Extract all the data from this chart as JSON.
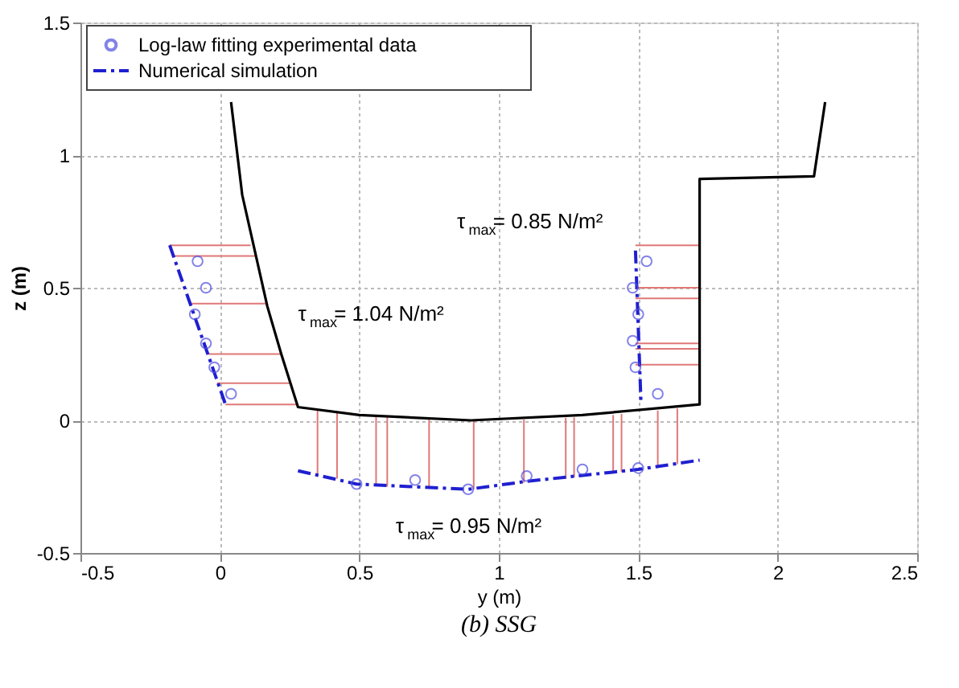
{
  "chart_data": {
    "type": "line",
    "title": "(b) SSG",
    "xlabel": "y (m)",
    "ylabel": "z (m)",
    "xlim": [
      -0.5,
      2.5
    ],
    "xticks": [
      -0.5,
      0,
      0.5,
      1,
      1.5,
      2,
      2.5
    ],
    "ylim": [
      -0.5,
      1.5
    ],
    "yticks": [
      -0.5,
      0,
      0.5,
      1,
      1.5
    ],
    "grid": true,
    "legend": "top left",
    "series": [
      {
        "color": "#e07878",
        "x": [
          -0.18,
          0.11
        ],
        "values": [
          0.66,
          0.66
        ]
      },
      {
        "color": "#e07878",
        "x": [
          -0.17,
          0.13
        ],
        "values": [
          0.62,
          0.62
        ]
      },
      {
        "color": "#e07878",
        "x": [
          -0.11,
          0.17
        ],
        "values": [
          0.44,
          0.44
        ]
      },
      {
        "color": "#e07878",
        "x": [
          -0.04,
          0.22
        ],
        "values": [
          0.25,
          0.25
        ]
      },
      {
        "color": "#e07878",
        "x": [
          -0.01,
          0.25
        ],
        "values": [
          0.14,
          0.14
        ]
      },
      {
        "color": "#e07878",
        "x": [
          0.02,
          0.28
        ],
        "values": [
          0.06,
          0.06
        ]
      },
      {
        "color": "#e07878",
        "x": [
          1.49,
          1.72
        ],
        "values": [
          0.66,
          0.66
        ]
      },
      {
        "color": "#e07878",
        "x": [
          1.49,
          1.72
        ],
        "values": [
          0.5,
          0.5
        ]
      },
      {
        "color": "#e07878",
        "x": [
          1.49,
          1.72
        ],
        "values": [
          0.46,
          0.46
        ]
      },
      {
        "color": "#e07878",
        "x": [
          1.49,
          1.72
        ],
        "values": [
          0.29,
          0.29
        ]
      },
      {
        "color": "#e07878",
        "x": [
          1.49,
          1.72
        ],
        "values": [
          0.27,
          0.27
        ]
      },
      {
        "color": "#e07878",
        "x": [
          1.49,
          1.72
        ],
        "values": [
          0.21,
          0.21
        ]
      },
      {
        "color": "#e07878",
        "x": [
          0.35,
          0.35
        ],
        "values": [
          0.04,
          -0.21
        ]
      },
      {
        "color": "#e07878",
        "x": [
          0.42,
          0.42
        ],
        "values": [
          0.03,
          -0.22
        ]
      },
      {
        "color": "#e07878",
        "x": [
          0.56,
          0.56
        ],
        "values": [
          0.015,
          -0.245
        ]
      },
      {
        "color": "#e07878",
        "x": [
          0.6,
          0.6
        ],
        "values": [
          0.012,
          -0.25
        ]
      },
      {
        "color": "#e07878",
        "x": [
          0.75,
          0.75
        ],
        "values": [
          0.003,
          -0.255
        ]
      },
      {
        "color": "#e07878",
        "x": [
          0.91,
          0.91
        ],
        "values": [
          0.0,
          -0.26
        ]
      },
      {
        "color": "#e07878",
        "x": [
          1.09,
          1.09
        ],
        "values": [
          0.003,
          -0.235
        ]
      },
      {
        "color": "#e07878",
        "x": [
          1.24,
          1.24
        ],
        "values": [
          0.01,
          -0.22
        ]
      },
      {
        "color": "#e07878",
        "x": [
          1.27,
          1.27
        ],
        "values": [
          0.011,
          -0.215
        ]
      },
      {
        "color": "#e07878",
        "x": [
          1.41,
          1.41
        ],
        "values": [
          0.02,
          -0.2
        ]
      },
      {
        "color": "#e07878",
        "x": [
          1.44,
          1.44
        ],
        "values": [
          0.024,
          -0.195
        ]
      },
      {
        "color": "#e07878",
        "x": [
          1.57,
          1.57
        ],
        "values": [
          0.037,
          -0.18
        ]
      },
      {
        "color": "#e07878",
        "x": [
          1.64,
          1.64
        ],
        "values": [
          0.045,
          -0.165
        ]
      },
      {
        "color": "#000000",
        "x": [
          0.04,
          0.08,
          0.17,
          0.22,
          0.28,
          0.5,
          0.9,
          1.3,
          1.72,
          1.72,
          2.13,
          2.17
        ],
        "values": [
          1.2,
          0.85,
          0.43,
          0.25,
          0.05,
          0.02,
          0.0,
          0.02,
          0.06,
          0.91,
          0.92,
          1.2
        ]
      },
      {
        "name": "Numerical simulation",
        "color": "#1f1fd0",
        "line_style": "dashed",
        "x": [
          -0.18,
          0.02,
          null,
          1.49,
          1.51,
          null,
          0.28,
          0.49,
          0.89,
          1.1,
          1.5,
          1.72
        ],
        "values": [
          0.66,
          0.06,
          null,
          0.64,
          0.06,
          null,
          -0.19,
          -0.24,
          -0.26,
          -0.23,
          -0.185,
          -0.15
        ]
      },
      {
        "type": "scatter",
        "name": "Log-law fitting experimental data",
        "color": "#5050e0",
        "marker": "circle",
        "x": [
          -0.08,
          -0.05,
          -0.09,
          -0.05,
          -0.02,
          0.04,
          1.53,
          1.48,
          1.5,
          1.48,
          1.49,
          1.57,
          0.49,
          0.7,
          0.89,
          1.1,
          1.3,
          1.5
        ],
        "values": [
          0.6,
          0.5,
          0.4,
          0.29,
          0.2,
          0.1,
          0.6,
          0.5,
          0.4,
          0.3,
          0.2,
          0.1,
          -0.24,
          -0.225,
          -0.26,
          -0.21,
          -0.185,
          -0.18
        ]
      }
    ],
    "annotations": [
      "τ$_{max}$=   1.04 N/m²",
      "τ$_{max}$=   0.85 N/m²",
      "τ$_{max}$=   0.95 N/m²"
    ]
  }
}
